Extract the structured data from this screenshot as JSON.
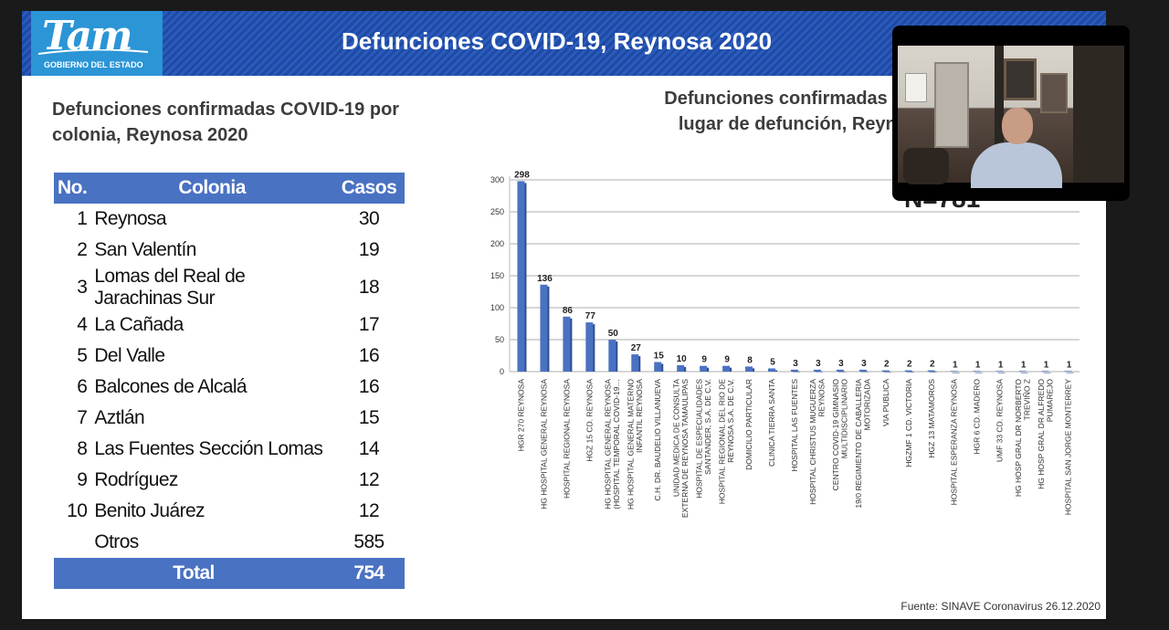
{
  "header": {
    "title": "Defunciones COVID-19, Reynosa 2020",
    "logo_text": "Tam",
    "logo_subtitle": "GOBIERNO DEL ESTADO"
  },
  "colonias": {
    "heading_line1": "Defunciones confirmadas COVID-19 por",
    "heading_line2": "colonia, Reynosa 2020",
    "columns": [
      "No.",
      "Colonia",
      "Casos"
    ],
    "rows": [
      {
        "no": "1",
        "colonia": "Reynosa",
        "casos": "30"
      },
      {
        "no": "2",
        "colonia": "San Valentín",
        "casos": "19"
      },
      {
        "no": "3",
        "colonia": "Lomas del Real de Jarachinas Sur",
        "casos": "18"
      },
      {
        "no": "4",
        "colonia": "La Cañada",
        "casos": "17"
      },
      {
        "no": "5",
        "colonia": "Del Valle",
        "casos": "16"
      },
      {
        "no": "6",
        "colonia": "Balcones de Alcalá",
        "casos": "16"
      },
      {
        "no": "7",
        "colonia": "Aztlán",
        "casos": "15"
      },
      {
        "no": "8",
        "colonia": "Las Fuentes Sección Lomas",
        "casos": "14"
      },
      {
        "no": "9",
        "colonia": "Rodríguez",
        "casos": "12"
      },
      {
        "no": "10",
        "colonia": "Benito Juárez",
        "casos": "12"
      },
      {
        "no": "",
        "colonia": "Otros",
        "casos": "585"
      }
    ],
    "total_label": "Total",
    "total_value": "754"
  },
  "chart_heading_line1": "Defunciones confirmadas COV",
  "chart_heading_line2": "lugar de defunción, Reynos",
  "n_label": "N=781",
  "chart_data": {
    "type": "bar",
    "title": "",
    "xlabel": "",
    "ylabel": "",
    "ylim": [
      0,
      300
    ],
    "yticks": [
      0,
      50,
      100,
      150,
      200,
      250,
      300
    ],
    "grid": true,
    "bar_color": "#4a72c2",
    "categories": [
      [
        "HGR 270 REYNOSA"
      ],
      [
        "HG HOSPITAL GENERAL REYNOSA"
      ],
      [
        "HOSPITAL REGIONAL REYNOSA"
      ],
      [
        "HGZ 15 CD. REYNOSA"
      ],
      [
        "HG HOSPITAL GENERAL REYNOSA",
        "(HOSPITAL TEMPORAL COVID-19…"
      ],
      [
        "HG HOSPITAL GENERAL MATERNO",
        "INFANTIL REYNOSA"
      ],
      [
        "C.H. DR. BAUDELIO VILLANUEVA"
      ],
      [
        "UNIDAD MEDICA DE CONSULTA",
        "EXTERNA DE REYNOSA TAMAULIPAS"
      ],
      [
        "HOSPITAL DE ESPECIALIDADES",
        "SANTANDER, S.A. DE C.V."
      ],
      [
        "HOSPITAL REGIONAL DEL RIO DE",
        "REYNOSA S.A. DE C.V."
      ],
      [
        "DOMICILIO PARTICULAR"
      ],
      [
        "CLINICA TIERRA SANTA"
      ],
      [
        "HOSPITAL LAS FUENTES"
      ],
      [
        "HOSPITAL CHRISTUS MUGUERZA",
        "REYNOSA"
      ],
      [
        "CENTRO COVID-19 GIMNASIO",
        "MULTIDISCIPLINARIO"
      ],
      [
        "19/0 REGIMIENTO DE CABALLERIA",
        "MOTORIZADA"
      ],
      [
        "VIA PUBLICA"
      ],
      [
        "HGZMF 1 CD. VICTORIA"
      ],
      [
        "HGZ 13 MATAMOROS"
      ],
      [
        "HOSPITAL ESPERANZA REYNOSA"
      ],
      [
        "HGR 6 CD. MADERO"
      ],
      [
        "UMF    33 CD. REYNOSA"
      ],
      [
        "HG HOSP GRAL DR NORBERTO",
        "TREVIÑO Z"
      ],
      [
        "HG HOSP GRAL DR ALFREDO",
        "PUMAREJO"
      ],
      [
        "HOSPITAL SAN JORGE MONTERREY"
      ]
    ],
    "values": [
      298,
      136,
      86,
      77,
      50,
      27,
      15,
      10,
      9,
      9,
      8,
      5,
      3,
      3,
      3,
      3,
      2,
      2,
      2,
      1,
      1,
      1,
      1,
      1,
      1
    ]
  },
  "source": "Fuente: SINAVE Coronavirus 26.12.2020"
}
